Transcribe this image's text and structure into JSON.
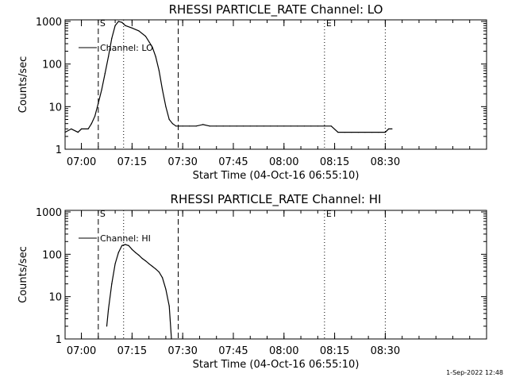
{
  "chart_data": [
    {
      "type": "line",
      "title": "RHESSI PARTICLE_RATE Channel: LO",
      "xlabel": "Start Time (04-Oct-16 06:55:10)",
      "ylabel": "Counts/sec",
      "yscale": "log",
      "ylim": [
        1,
        1000
      ],
      "y_ticks": [
        "1",
        "10",
        "100",
        "1000"
      ],
      "x_tick_labels": [
        "07:00",
        "07:15",
        "07:30",
        "07:45",
        "08:00",
        "08:15",
        "08:30"
      ],
      "x_tick_times": [
        "07:00",
        "07:15",
        "07:30",
        "07:45",
        "08:00",
        "08:15",
        "08:30"
      ],
      "xlim": [
        "06:55:10",
        "09:00:00"
      ],
      "legend_position": "top-left",
      "series": [
        {
          "name": "Channel: LO",
          "x": [
            "06:55:10",
            "06:57:00",
            "06:59:00",
            "07:00:00",
            "07:02:00",
            "07:03:00",
            "07:04:00",
            "07:05:00",
            "07:06:00",
            "07:07:00",
            "07:08:00",
            "07:09:00",
            "07:10:00",
            "07:11:00",
            "07:12:00",
            "07:13:00",
            "07:15:00",
            "07:17:00",
            "07:19:00",
            "07:21:00",
            "07:22:00",
            "07:23:00",
            "07:24:00",
            "07:25:00",
            "07:26:00",
            "07:27:00",
            "07:28:00",
            "07:29:00",
            "07:30:00",
            "07:32:00",
            "07:34:00",
            "07:36:00",
            "07:38:00",
            "07:40:00",
            "07:42:00",
            "07:44:00",
            "07:46:00",
            "07:48:00",
            "07:50:00",
            "07:52:00",
            "07:54:00",
            "07:56:00",
            "07:58:00",
            "08:00:00",
            "08:02:00",
            "08:04:00",
            "08:06:00",
            "08:08:00",
            "08:10:00",
            "08:12:00",
            "08:14:00",
            "08:16:00",
            "08:18:00",
            "08:20:00",
            "08:22:00",
            "08:24:00",
            "08:26:00",
            "08:28:00",
            "08:30:00",
            "08:31:00",
            "08:32:00"
          ],
          "y": [
            2.5,
            3,
            2.5,
            3,
            3,
            4,
            6,
            12,
            25,
            60,
            150,
            400,
            800,
            1000,
            950,
            800,
            700,
            600,
            450,
            250,
            150,
            70,
            25,
            10,
            5,
            4,
            3.5,
            3.5,
            3.5,
            3.5,
            3.5,
            3.8,
            3.5,
            3.5,
            3.5,
            3.5,
            3.5,
            3.5,
            3.5,
            3.5,
            3.5,
            3.5,
            3.5,
            3.5,
            3.5,
            3.5,
            3.5,
            3.5,
            3.5,
            3.5,
            3.5,
            2.5,
            2.5,
            2.5,
            2.5,
            2.5,
            2.5,
            2.5,
            2.5,
            3,
            3
          ]
        }
      ],
      "markers": [
        {
          "label": "S",
          "time": "07:05:00",
          "style": "dashed"
        },
        {
          "label": "",
          "time": "07:12:30",
          "style": "dotted"
        },
        {
          "label": "",
          "time": "07:28:40",
          "style": "dashed"
        },
        {
          "label": "E",
          "time": "08:12:00",
          "style": "dotted"
        },
        {
          "label": "",
          "time": "08:30:00",
          "style": "dotted"
        }
      ]
    },
    {
      "type": "line",
      "title": "RHESSI PARTICLE_RATE Channel: HI",
      "xlabel": "Start Time (04-Oct-16 06:55:10)",
      "ylabel": "Counts/sec",
      "yscale": "log",
      "ylim": [
        1,
        1000
      ],
      "y_ticks": [
        "1",
        "10",
        "100",
        "1000"
      ],
      "x_tick_labels": [
        "07:00",
        "07:15",
        "07:30",
        "07:45",
        "08:00",
        "08:15",
        "08:30"
      ],
      "x_tick_times": [
        "07:00",
        "07:15",
        "07:30",
        "07:45",
        "08:00",
        "08:15",
        "08:30"
      ],
      "xlim": [
        "06:55:10",
        "09:00:00"
      ],
      "legend_position": "top-left",
      "series": [
        {
          "name": "Channel: HI",
          "x": [
            "07:07:30",
            "07:08:00",
            "07:09:00",
            "07:10:00",
            "07:11:00",
            "07:12:00",
            "07:13:00",
            "07:14:00",
            "07:15:00",
            "07:16:00",
            "07:17:00",
            "07:18:00",
            "07:19:00",
            "07:20:00",
            "07:21:00",
            "07:22:00",
            "07:23:00",
            "07:24:00",
            "07:25:00",
            "07:26:00",
            "07:26:40"
          ],
          "y": [
            2,
            5,
            20,
            60,
            110,
            160,
            170,
            160,
            130,
            110,
            95,
            80,
            70,
            60,
            52,
            45,
            38,
            28,
            15,
            6,
            1
          ]
        }
      ],
      "markers": [
        {
          "label": "S",
          "time": "07:05:00",
          "style": "dashed"
        },
        {
          "label": "",
          "time": "07:12:30",
          "style": "dotted"
        },
        {
          "label": "",
          "time": "07:28:40",
          "style": "dashed"
        },
        {
          "label": "E",
          "time": "08:12:00",
          "style": "dotted"
        },
        {
          "label": "",
          "time": "08:30:00",
          "style": "dotted"
        }
      ]
    }
  ],
  "footer": {
    "timestamp": "1-Sep-2022 12:48"
  }
}
